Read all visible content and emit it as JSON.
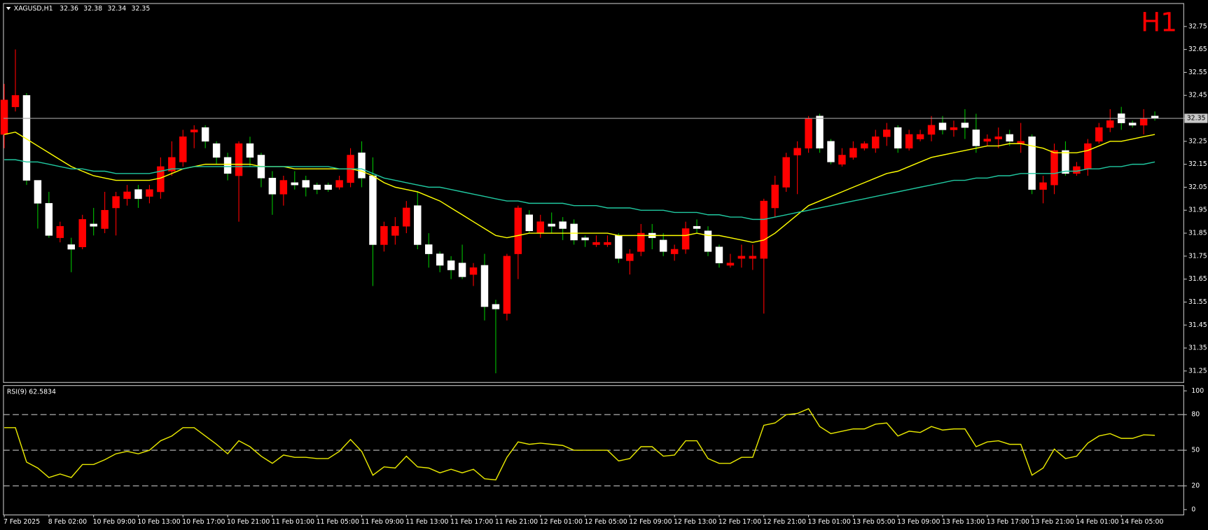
{
  "chart_data": [
    {
      "type": "candlestick",
      "title": "XAGUSD,H1",
      "header_values": [
        32.36,
        32.38,
        32.34,
        32.35
      ],
      "timeframe": "H1",
      "categories": [
        "7 Feb 2025",
        null,
        null,
        null,
        "8 Feb 02:00",
        null,
        null,
        null,
        "10 Feb 09:00",
        null,
        null,
        null,
        "10 Feb 13:00",
        null,
        null,
        null,
        "10 Feb 17:00",
        null,
        null,
        null,
        "10 Feb 21:00",
        null,
        null,
        null,
        "11 Feb 01:00",
        null,
        null,
        null,
        "11 Feb 05:00",
        null,
        null,
        null,
        "11 Feb 09:00",
        null,
        null,
        null,
        "11 Feb 13:00",
        null,
        null,
        null,
        "11 Feb 17:00",
        null,
        null,
        null,
        "11 Feb 21:00",
        null,
        null,
        null,
        "12 Feb 01:00",
        null,
        null,
        null,
        "12 Feb 05:00",
        null,
        null,
        null,
        "12 Feb 09:00",
        null,
        null,
        null,
        "12 Feb 13:00",
        null,
        null,
        null,
        "12 Feb 17:00",
        null,
        null,
        null,
        "12 Feb 21:00",
        null,
        null,
        null,
        "13 Feb 01:00",
        null,
        null,
        null,
        "13 Feb 05:00",
        null,
        null,
        null,
        "13 Feb 09:00",
        null,
        null,
        null,
        "13 Feb 13:00",
        null,
        null,
        null,
        "13 Feb 17:00",
        null,
        null,
        null,
        "13 Feb 21:00",
        null,
        null,
        null,
        "14 Feb 01:00",
        null,
        null,
        null,
        "14 Feb 05:00",
        null,
        null,
        null
      ],
      "open": [
        32.28,
        32.4,
        32.45,
        32.08,
        31.98,
        31.83,
        31.8,
        31.79,
        31.89,
        31.87,
        31.96,
        32.0,
        32.04,
        32.01,
        32.03,
        32.12,
        32.16,
        32.29,
        32.31,
        32.24,
        32.18,
        32.1,
        32.24,
        32.19,
        32.09,
        32.02,
        32.07,
        32.08,
        32.06,
        32.06,
        32.05,
        32.07,
        32.2,
        32.1,
        31.8,
        31.84,
        31.88,
        31.97,
        31.8,
        31.76,
        31.73,
        31.72,
        31.67,
        31.71,
        31.54,
        31.5,
        31.76,
        31.93,
        31.85,
        31.89,
        31.9,
        31.89,
        31.83,
        31.8,
        31.8,
        31.84,
        31.73,
        31.77,
        31.85,
        31.82,
        31.76,
        31.78,
        31.88,
        31.86,
        31.79,
        31.71,
        31.74,
        31.74,
        31.74,
        31.96,
        32.05,
        32.19,
        32.22,
        32.36,
        32.25,
        32.15,
        32.18,
        32.22,
        32.22,
        32.27,
        32.31,
        32.22,
        32.26,
        32.28,
        32.33,
        32.3,
        32.33,
        32.3,
        32.25,
        32.26,
        32.28,
        32.24,
        32.27,
        32.04,
        32.06,
        32.21,
        32.11,
        32.13,
        32.25,
        32.31,
        32.37,
        32.33,
        32.32,
        32.36
      ],
      "high": [
        32.5,
        32.65,
        32.46,
        32.07,
        32.03,
        31.9,
        31.83,
        31.93,
        31.96,
        32.03,
        32.03,
        32.06,
        32.06,
        32.06,
        32.18,
        32.25,
        32.3,
        32.32,
        32.32,
        32.25,
        32.2,
        32.25,
        32.27,
        32.2,
        32.12,
        32.1,
        32.12,
        32.1,
        32.07,
        32.07,
        32.1,
        32.22,
        32.25,
        32.18,
        31.9,
        31.92,
        31.99,
        32.03,
        31.85,
        31.77,
        31.75,
        31.8,
        31.72,
        31.76,
        31.56,
        31.76,
        31.97,
        31.95,
        31.93,
        31.94,
        31.92,
        31.91,
        31.84,
        31.84,
        31.84,
        31.85,
        31.78,
        31.89,
        31.89,
        31.85,
        31.8,
        31.9,
        31.91,
        31.88,
        31.8,
        31.76,
        31.8,
        31.8,
        32.0,
        32.1,
        32.2,
        32.25,
        32.36,
        32.37,
        32.26,
        32.22,
        32.25,
        32.25,
        32.3,
        32.33,
        32.32,
        32.3,
        32.3,
        32.36,
        32.36,
        32.34,
        32.39,
        32.37,
        32.28,
        32.31,
        32.3,
        32.33,
        32.28,
        32.1,
        32.24,
        32.25,
        32.16,
        32.26,
        32.33,
        32.39,
        32.4,
        32.34,
        32.39,
        32.38
      ],
      "low": [
        32.22,
        32.38,
        32.06,
        31.87,
        31.83,
        31.81,
        31.68,
        31.78,
        31.84,
        31.85,
        31.84,
        31.97,
        31.96,
        31.98,
        32.0,
        32.1,
        32.14,
        32.22,
        32.22,
        32.15,
        32.08,
        31.9,
        32.14,
        32.05,
        31.93,
        31.97,
        32.04,
        32.01,
        32.02,
        32.03,
        32.04,
        32.05,
        32.05,
        31.62,
        31.77,
        31.8,
        31.85,
        31.78,
        31.7,
        31.68,
        31.65,
        31.65,
        31.62,
        31.47,
        31.24,
        31.47,
        31.65,
        31.85,
        31.83,
        31.85,
        31.82,
        31.8,
        31.79,
        31.79,
        31.79,
        31.72,
        31.67,
        31.75,
        31.78,
        31.75,
        31.73,
        31.76,
        31.85,
        31.75,
        31.7,
        31.7,
        31.7,
        31.69,
        31.5,
        31.92,
        32.03,
        32.02,
        32.2,
        32.2,
        32.15,
        32.14,
        32.17,
        32.21,
        32.2,
        32.23,
        32.2,
        32.21,
        32.25,
        32.25,
        32.28,
        32.27,
        32.26,
        32.2,
        32.23,
        32.22,
        32.23,
        32.2,
        32.02,
        31.98,
        32.02,
        32.1,
        32.1,
        32.1,
        32.24,
        32.29,
        32.3,
        32.31,
        32.28,
        32.34
      ],
      "close": [
        32.43,
        32.45,
        32.08,
        31.98,
        31.84,
        31.88,
        31.78,
        31.91,
        31.88,
        31.95,
        32.01,
        32.03,
        32.0,
        32.04,
        32.14,
        32.18,
        32.27,
        32.3,
        32.25,
        32.18,
        32.11,
        32.24,
        32.18,
        32.09,
        32.02,
        32.08,
        32.06,
        32.05,
        32.04,
        32.04,
        32.08,
        32.19,
        32.09,
        31.8,
        31.88,
        31.88,
        31.96,
        31.8,
        31.76,
        31.71,
        31.69,
        31.66,
        31.7,
        31.53,
        31.52,
        31.75,
        31.96,
        31.86,
        31.9,
        31.88,
        31.87,
        31.82,
        31.82,
        31.81,
        31.81,
        31.74,
        31.76,
        31.85,
        31.83,
        31.77,
        31.78,
        31.87,
        31.87,
        31.77,
        31.72,
        31.72,
        31.75,
        31.75,
        31.99,
        32.06,
        32.18,
        32.22,
        32.35,
        32.22,
        32.16,
        32.19,
        32.22,
        32.24,
        32.27,
        32.3,
        32.22,
        32.28,
        32.28,
        32.32,
        32.3,
        32.31,
        32.31,
        32.23,
        32.26,
        32.27,
        32.25,
        32.25,
        32.04,
        32.07,
        32.21,
        32.11,
        32.14,
        32.24,
        32.31,
        32.34,
        32.33,
        32.32,
        32.35,
        32.35
      ],
      "up_color": "#ff0000",
      "down_color": "#ffffff",
      "up_wick_color": "#ff0000",
      "down_wick_color": "#00c000",
      "overlays": [
        {
          "color": "#ffff00",
          "values": [
            32.28,
            32.29,
            32.26,
            32.23,
            32.2,
            32.17,
            32.14,
            32.12,
            32.1,
            32.09,
            32.08,
            32.08,
            32.08,
            32.08,
            32.09,
            32.11,
            32.13,
            32.14,
            32.15,
            32.15,
            32.15,
            32.15,
            32.15,
            32.14,
            32.14,
            32.14,
            32.13,
            32.13,
            32.13,
            32.13,
            32.13,
            32.13,
            32.12,
            32.1,
            32.07,
            32.05,
            32.04,
            32.03,
            32.01,
            31.99,
            31.96,
            31.93,
            31.9,
            31.87,
            31.84,
            31.83,
            31.84,
            31.85,
            31.85,
            31.85,
            31.85,
            31.85,
            31.85,
            31.85,
            31.85,
            31.84,
            31.84,
            31.84,
            31.84,
            31.84,
            31.84,
            31.84,
            31.85,
            31.84,
            31.84,
            31.83,
            31.82,
            31.81,
            31.82,
            31.85,
            31.89,
            31.93,
            31.97,
            31.99,
            32.01,
            32.03,
            32.05,
            32.07,
            32.09,
            32.11,
            32.12,
            32.14,
            32.16,
            32.18,
            32.19,
            32.2,
            32.21,
            32.22,
            32.23,
            32.23,
            32.24,
            32.24,
            32.23,
            32.22,
            32.2,
            32.2,
            32.2,
            32.21,
            32.23,
            32.25,
            32.25,
            32.26,
            32.27,
            32.28
          ]
        },
        {
          "color": "#20c8a0",
          "values": [
            32.17,
            32.17,
            32.16,
            32.16,
            32.15,
            32.14,
            32.13,
            32.13,
            32.12,
            32.12,
            32.11,
            32.11,
            32.11,
            32.11,
            32.12,
            32.13,
            32.13,
            32.14,
            32.14,
            32.14,
            32.14,
            32.14,
            32.14,
            32.14,
            32.14,
            32.14,
            32.14,
            32.14,
            32.14,
            32.14,
            32.13,
            32.13,
            32.13,
            32.11,
            32.09,
            32.08,
            32.07,
            32.06,
            32.05,
            32.05,
            32.04,
            32.03,
            32.02,
            32.01,
            32.0,
            31.99,
            31.99,
            31.98,
            31.98,
            31.98,
            31.98,
            31.97,
            31.97,
            31.97,
            31.96,
            31.96,
            31.96,
            31.95,
            31.95,
            31.95,
            31.94,
            31.94,
            31.94,
            31.93,
            31.93,
            31.92,
            31.92,
            31.91,
            31.91,
            31.92,
            31.93,
            31.94,
            31.95,
            31.96,
            31.97,
            31.98,
            31.99,
            32.0,
            32.01,
            32.02,
            32.03,
            32.04,
            32.05,
            32.06,
            32.07,
            32.08,
            32.08,
            32.09,
            32.09,
            32.1,
            32.1,
            32.11,
            32.11,
            32.11,
            32.11,
            32.12,
            32.12,
            32.13,
            32.13,
            32.14,
            32.14,
            32.15,
            32.15,
            32.16
          ]
        }
      ],
      "ylim": [
        31.2,
        32.85
      ],
      "yticks": [
        32.75,
        32.65,
        32.55,
        32.45,
        32.35,
        32.25,
        32.15,
        32.05,
        31.95,
        31.85,
        31.75,
        31.65,
        31.55,
        31.45,
        31.35,
        31.25
      ],
      "bid": 32.35
    },
    {
      "type": "line",
      "title": "RSI(9) 62.5834",
      "color": "#e8e800",
      "values": [
        69,
        69,
        40,
        35,
        27,
        30,
        27,
        38,
        38,
        42,
        47,
        49,
        47,
        50,
        58,
        62,
        69,
        69,
        62,
        55,
        47,
        58,
        53,
        45,
        39,
        46,
        44,
        44,
        43,
        43,
        49,
        59,
        49,
        29,
        36,
        35,
        45,
        36,
        35,
        31,
        34,
        31,
        34,
        26,
        25,
        44,
        57,
        55,
        56,
        55,
        54,
        50,
        50,
        50,
        50,
        41,
        43,
        53,
        53,
        45,
        46,
        58,
        58,
        43,
        39,
        39,
        44,
        44,
        71,
        73,
        80,
        81,
        85,
        70,
        64,
        66,
        68,
        68,
        72,
        73,
        62,
        66,
        65,
        70,
        67,
        68,
        68,
        53,
        57,
        58,
        55,
        55,
        29,
        35,
        51,
        43,
        45,
        56,
        62,
        64,
        60,
        60,
        63,
        62.58
      ],
      "ylim": [
        -4.5,
        104.5
      ],
      "yticks": [
        100,
        80,
        50,
        20,
        0
      ],
      "levels": [
        80,
        50,
        20
      ]
    }
  ]
}
